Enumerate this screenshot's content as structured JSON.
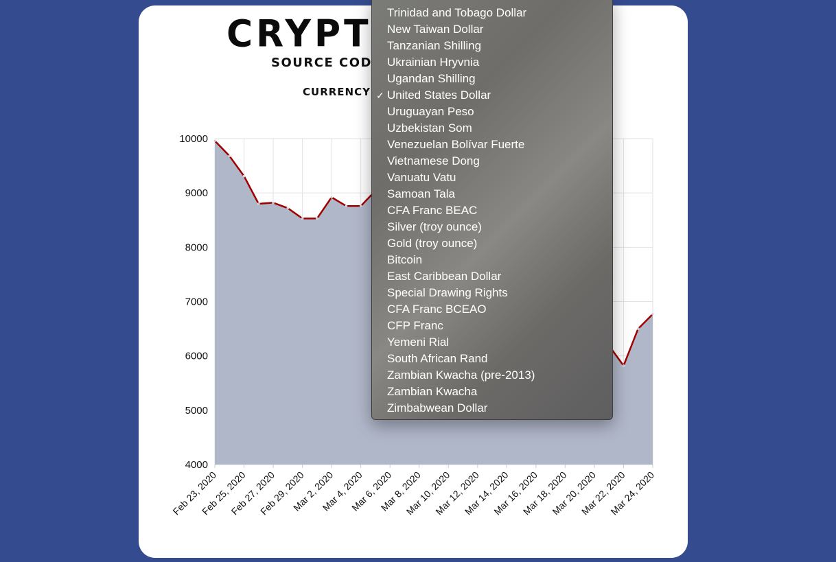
{
  "header": {
    "title": "CRYPTO",
    "subtitle": "SOURCE CODE",
    "currency_label": "CURRENCY"
  },
  "currency_menu": {
    "selected": "United States Dollar",
    "options": [
      "Trinidad and Tobago Dollar",
      "New Taiwan Dollar",
      "Tanzanian Shilling",
      "Ukrainian Hryvnia",
      "Ugandan Shilling",
      "United States Dollar",
      "Uruguayan Peso",
      "Uzbekistan Som",
      "Venezuelan Bolívar Fuerte",
      "Vietnamese Dong",
      "Vanuatu Vatu",
      "Samoan Tala",
      "CFA Franc BEAC",
      "Silver (troy ounce)",
      "Gold (troy ounce)",
      "Bitcoin",
      "East Caribbean Dollar",
      "Special Drawing Rights",
      "CFA Franc BCEAO",
      "CFP Franc",
      "Yemeni Rial",
      "South African Rand",
      "Zambian Kwacha (pre-2013)",
      "Zambian Kwacha",
      "Zimbabwean Dollar"
    ]
  },
  "colors": {
    "page_background": "#354b8f",
    "card_background": "#ffffff",
    "line": "#a00000",
    "area_fill": "#b0b7c9",
    "grid": "#e2e2e2"
  },
  "chart_data": {
    "type": "area",
    "title": "",
    "xlabel": "",
    "ylabel": "",
    "ylim": [
      4000,
      10000
    ],
    "yticks": [
      4000,
      5000,
      6000,
      7000,
      8000,
      9000,
      10000
    ],
    "x_tick_labels": [
      "Feb 23, 2020",
      "Feb 25, 2020",
      "Feb 27, 2020",
      "Feb 29, 2020",
      "Mar 2, 2020",
      "Mar 4, 2020",
      "Mar 6, 2020",
      "Mar 8, 2020",
      "Mar 10, 2020",
      "Mar 12, 2020",
      "Mar 14, 2020",
      "Mar 16, 2020",
      "Mar 18, 2020",
      "Mar 20, 2020",
      "Mar 22, 2020",
      "Mar 24, 2020"
    ],
    "x": [
      "2020-02-23",
      "2020-02-24",
      "2020-02-25",
      "2020-02-26",
      "2020-02-27",
      "2020-02-28",
      "2020-02-29",
      "2020-03-01",
      "2020-03-02",
      "2020-03-03",
      "2020-03-04",
      "2020-03-05",
      "2020-03-06",
      "2020-03-21",
      "2020-03-22",
      "2020-03-23",
      "2020-03-24"
    ],
    "values": [
      9960,
      9680,
      9310,
      8800,
      8820,
      8720,
      8530,
      8530,
      8920,
      8760,
      8760,
      9040,
      9150,
      6190,
      5820,
      6500,
      6770
    ],
    "grid": true,
    "legend": "none"
  }
}
